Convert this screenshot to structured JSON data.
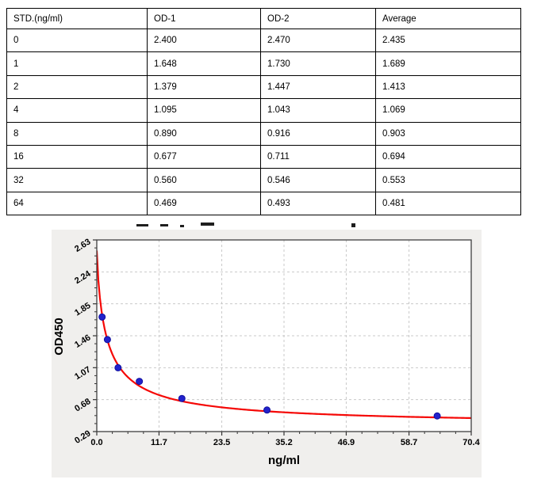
{
  "table": {
    "headers": [
      "STD.(ng/ml)",
      "OD-1",
      "OD-2",
      "Average"
    ],
    "rows": [
      [
        "0",
        "2.400",
        "2.470",
        "2.435"
      ],
      [
        "1",
        "1.648",
        "1.730",
        "1.689"
      ],
      [
        "2",
        "1.379",
        "1.447",
        "1.413"
      ],
      [
        "4",
        "1.095",
        "1.043",
        "1.069"
      ],
      [
        "8",
        "0.890",
        "0.916",
        "0.903"
      ],
      [
        "16",
        "0.677",
        "0.711",
        "0.694"
      ],
      [
        "32",
        "0.560",
        "0.546",
        "0.553"
      ],
      [
        "64",
        "0.469",
        "0.493",
        "0.481"
      ]
    ]
  },
  "chart_data": {
    "type": "scatter",
    "xlabel": "ng/ml",
    "ylabel": "OD450",
    "x": [
      1,
      2,
      4,
      8,
      16,
      32,
      64
    ],
    "y": [
      1.689,
      1.413,
      1.069,
      0.903,
      0.694,
      0.553,
      0.481
    ],
    "curve_fit": {
      "model": "4PL",
      "a": 2.5,
      "b": 0.85,
      "c": 1.9,
      "d": 0.36
    },
    "xlim": [
      0,
      70.4
    ],
    "ylim": [
      0.29,
      2.63
    ],
    "x_tick_labels": [
      "0.0",
      "11.7",
      "23.5",
      "35.2",
      "46.9",
      "58.7",
      "70.4"
    ],
    "y_tick_labels": [
      "0.29",
      "0.68",
      "1.07",
      "1.46",
      "1.85",
      "2.24",
      "2.63"
    ],
    "minor_ticks_per_interval": 3,
    "grid": "dashed",
    "legend": "none",
    "colors": {
      "curve": "#f50806",
      "points": "#2222cc",
      "point_edge": "#10109e",
      "grid": "#c9c9c9",
      "plot_border": "#3f3f3f",
      "plot_bg": "#ffffff",
      "panel_bg": "#f0efed",
      "tick": "#333333",
      "text": "#000000"
    }
  }
}
